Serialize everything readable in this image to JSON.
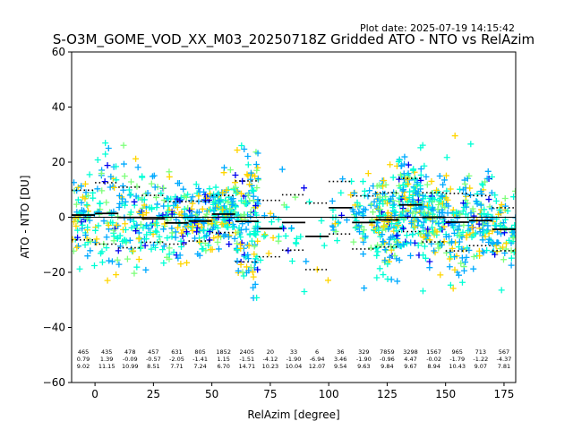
{
  "plot_date": "Plot date: 2025-07-19 14:15:42",
  "chart_data": {
    "type": "scatter",
    "title": "S-O3M_GOME_VOD_XX_M03_20250718Z Gridded ATO - NTO vs RelAzim",
    "xlabel": "RelAzim [degree]",
    "ylabel": "ATO - NTO [DU]",
    "xlim": [
      -10,
      180
    ],
    "ylim": [
      -60,
      60
    ],
    "xticks": [
      0,
      25,
      50,
      75,
      100,
      125,
      150,
      175
    ],
    "yticks": [
      -60,
      -40,
      -20,
      0,
      20,
      40,
      60
    ],
    "marker": "+",
    "colors": [
      "#0000ee",
      "#00aaff",
      "#00ffd5",
      "#7dff7a",
      "#ffd500"
    ],
    "zero_line": 0,
    "bins": [
      {
        "x": -5,
        "count": 465,
        "mean": 0.79,
        "std": 9.02
      },
      {
        "x": 5,
        "count": 435,
        "mean": 1.39,
        "std": 11.15
      },
      {
        "x": 15,
        "count": 478,
        "mean": -0.09,
        "std": 10.99
      },
      {
        "x": 25,
        "count": 457,
        "mean": -0.57,
        "std": 8.51
      },
      {
        "x": 35,
        "count": 631,
        "mean": -2.05,
        "std": 7.71
      },
      {
        "x": 45,
        "count": 805,
        "mean": -1.41,
        "std": 7.24
      },
      {
        "x": 55,
        "count": 1852,
        "mean": 1.15,
        "std": 6.7
      },
      {
        "x": 65,
        "count": 2405,
        "mean": -1.51,
        "std": 14.71
      },
      {
        "x": 75,
        "count": 20,
        "mean": -4.12,
        "std": 10.23
      },
      {
        "x": 85,
        "count": 33,
        "mean": -1.9,
        "std": 10.04
      },
      {
        "x": 95,
        "count": 6,
        "mean": -6.94,
        "std": 12.07
      },
      {
        "x": 105,
        "count": 36,
        "mean": 3.46,
        "std": 9.54
      },
      {
        "x": 115,
        "count": 329,
        "mean": -1.9,
        "std": 9.63
      },
      {
        "x": 125,
        "count": 7859,
        "mean": -0.96,
        "std": 9.84
      },
      {
        "x": 135,
        "count": 3298,
        "mean": 4.47,
        "std": 9.67
      },
      {
        "x": 145,
        "count": 1567,
        "mean": -0.02,
        "std": 8.94
      },
      {
        "x": 155,
        "count": 965,
        "mean": -1.79,
        "std": 10.43
      },
      {
        "x": 165,
        "count": 713,
        "mean": -1.22,
        "std": 9.07
      },
      {
        "x": 175,
        "count": 567,
        "mean": -4.37,
        "std": 7.81
      }
    ]
  }
}
